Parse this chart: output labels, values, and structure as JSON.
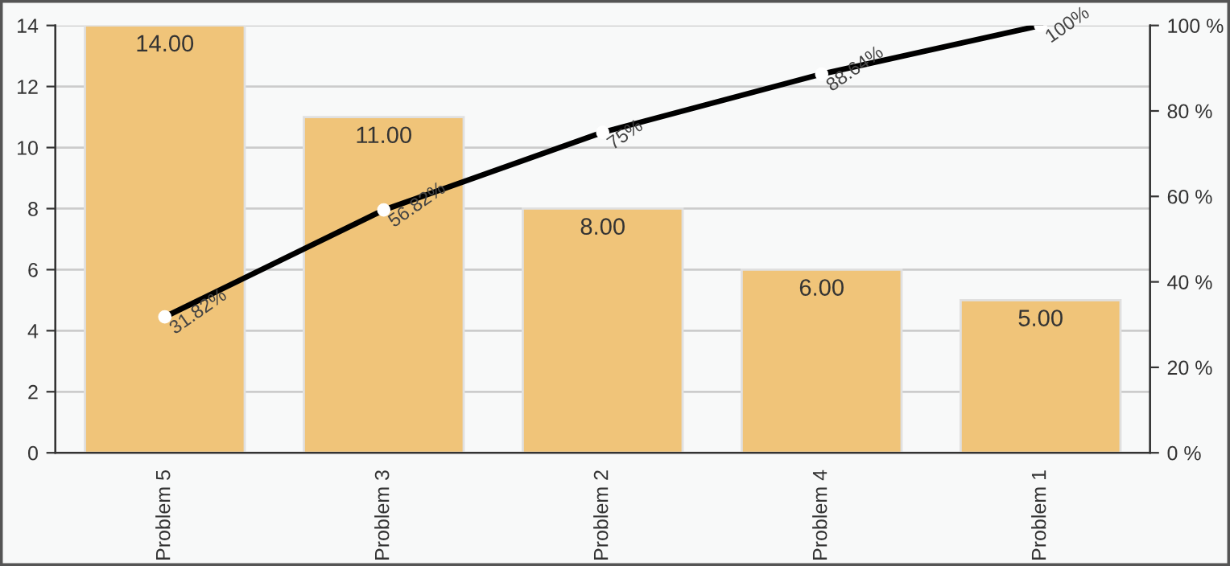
{
  "chart_data": {
    "type": "bar",
    "categories": [
      "Problem 5",
      "Problem 3",
      "Problem 2",
      "Problem 4",
      "Problem 1"
    ],
    "series": [
      {
        "color": "#f0c479",
        "values": [
          14,
          11,
          8,
          6,
          5
        ],
        "value_labels": [
          "14.00",
          "11.00",
          "8.00",
          "6.00",
          "5.00"
        ]
      },
      {
        "type": "line",
        "axis": "y2",
        "color": "#000000",
        "marker": "circle",
        "line_style": "solid",
        "values": [
          31.82,
          56.82,
          75,
          88.64,
          100
        ],
        "value_labels": [
          "31.82%",
          "56.82%",
          "75%",
          "88.64%",
          "100%"
        ]
      }
    ],
    "ylim": [
      0,
      14
    ],
    "yticks": [
      0,
      2,
      4,
      6,
      8,
      10,
      12,
      14
    ],
    "y2lim": [
      0,
      100
    ],
    "y2ticks": [
      {
        "value": 0,
        "label": "0 %"
      },
      {
        "value": 20,
        "label": "20 %"
      },
      {
        "value": 40,
        "label": "40 %"
      },
      {
        "value": 60,
        "label": "60 %"
      },
      {
        "value": 80,
        "label": "80 %"
      },
      {
        "value": 100,
        "label": "100 %"
      }
    ],
    "grid": "y",
    "legend": false
  }
}
